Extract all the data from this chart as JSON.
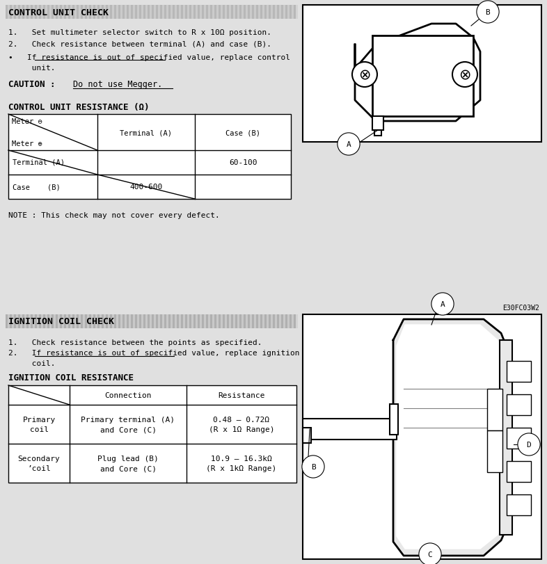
{
  "bg_color": "#c8c8c8",
  "white": "#ffffff",
  "black": "#000000",
  "section1_title": "CONTROL UNIT CHECK",
  "section1_step1": "1.   Set multimeter selector switch to R x 10Ω position.",
  "section1_step2": "2.   Check resistance between terminal (A) and case (B).",
  "section1_bullet": "•   If resistance is out of specified value, replace control",
  "section1_bullet2": "     unit.",
  "section1_caution_bold": "CAUTION :",
  "section1_caution_rest": "Do not use Megger.",
  "table1_title": "CONTROL UNIT RESISTANCE (Ω)",
  "meter_neg": "Meter ⊖",
  "meter_pos": "Meter ⊕",
  "terminal_a": "Terminal (A)",
  "case_b": "Case (B)",
  "row1_label": "Terminal (A)",
  "row2_label": "Case    (B)",
  "val_60_100": "60-100",
  "val_400_600": "400-600",
  "note": "NOTE : This check may not cover every defect.",
  "ref_code": "E30FC03W2",
  "section2_title": "IGNITION COIL CHECK",
  "section2_step1": "1.   Check resistance between the points as specified.",
  "section2_step2a": "2.   If resistance is out of specified value, replace ignition",
  "section2_step2b": "     coil.",
  "table2_title": "IGNITION COIL RESISTANCE",
  "conn_header": "Connection",
  "res_header": "Resistance",
  "t2r1c0": "Primary\ncoil",
  "t2r1c1": "Primary terminal (A)\nand Core (C)",
  "t2r1c2": "0.48 – 0.72Ω\n(R x 1Ω Range)",
  "t2r2c0": "Secondary\nʼcoil",
  "t2r2c1": "Plug lead (B)\nand Core (C)",
  "t2r2c2": "10.9 – 16.3kΩ\n(R x 1kΩ Range)"
}
